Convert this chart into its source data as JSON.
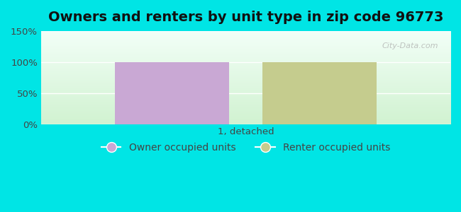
{
  "title": "Owners and renters by unit type in zip code 96773",
  "categories": [
    "1, detached"
  ],
  "owner_values": [
    100
  ],
  "renter_values": [
    100
  ],
  "owner_color": "#c9a8d4",
  "renter_color": "#c5cc8e",
  "ylim": [
    0,
    150
  ],
  "yticks": [
    0,
    50,
    100,
    150
  ],
  "ytick_labels": [
    "0%",
    "50%",
    "100%",
    "150%"
  ],
  "bar_width": 0.28,
  "bar_gap": 0.08,
  "background_color": "#00e5e5",
  "watermark": "City-Data.com",
  "legend_owner": "Owner occupied units",
  "legend_renter": "Renter occupied units",
  "title_fontsize": 14,
  "tick_fontsize": 9.5,
  "legend_fontsize": 10
}
